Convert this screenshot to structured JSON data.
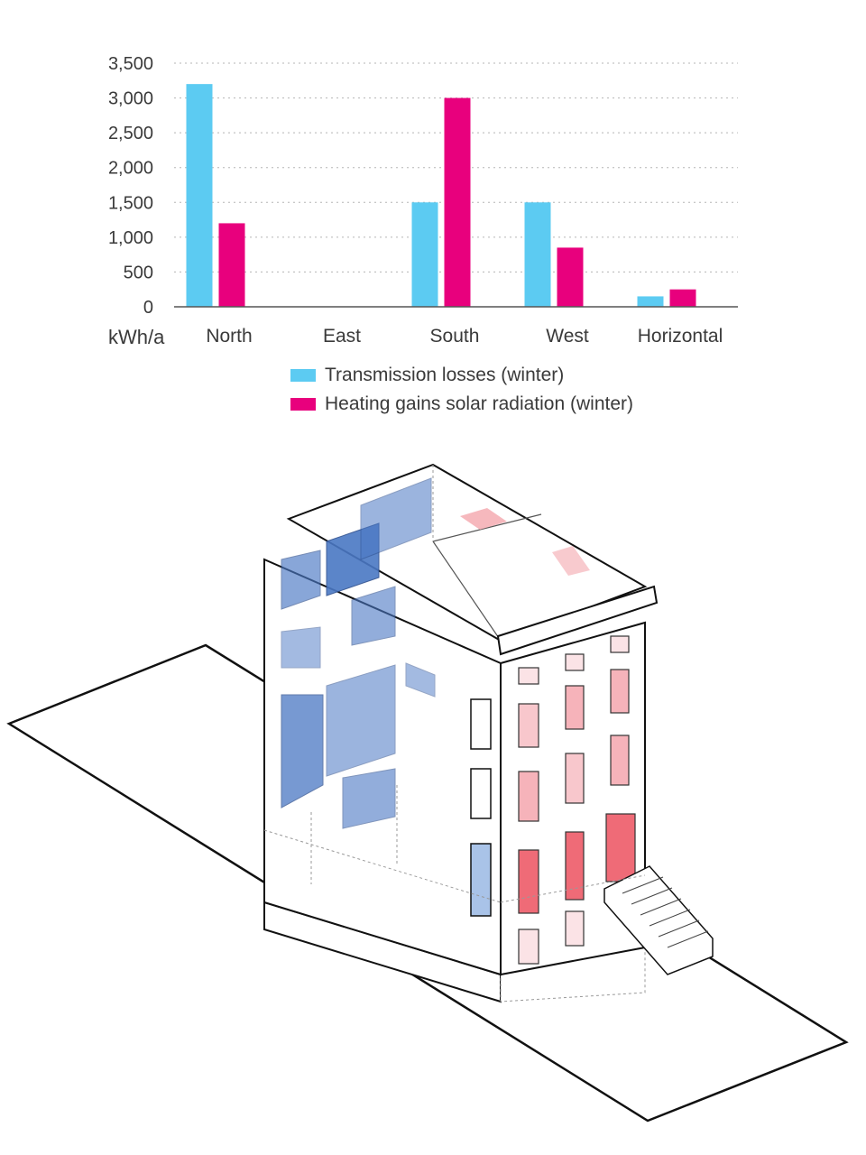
{
  "chart_data": {
    "type": "bar",
    "categories": [
      "North",
      "East",
      "South",
      "West",
      "Horizontal"
    ],
    "series": [
      {
        "name": "Transmission losses (winter)",
        "values": [
          3200,
          0,
          1500,
          1500,
          150
        ],
        "color": "#5ccbf2"
      },
      {
        "name": "Heating gains solar radiation (winter)",
        "values": [
          1200,
          0,
          3000,
          850,
          250
        ],
        "color": "#e8007d"
      }
    ],
    "yticks": [
      "0",
      "500",
      "1,000",
      "1,500",
      "2,000",
      "2,500",
      "3,000",
      "3,500"
    ],
    "ylim": [
      0,
      3500
    ],
    "ylabel": "kWh/a",
    "grid": true,
    "legend_position": "bottom"
  },
  "illustration": {
    "subject": "building-icon",
    "loss_color": "#4a78c4",
    "gain_color": "#ef4b5e"
  }
}
